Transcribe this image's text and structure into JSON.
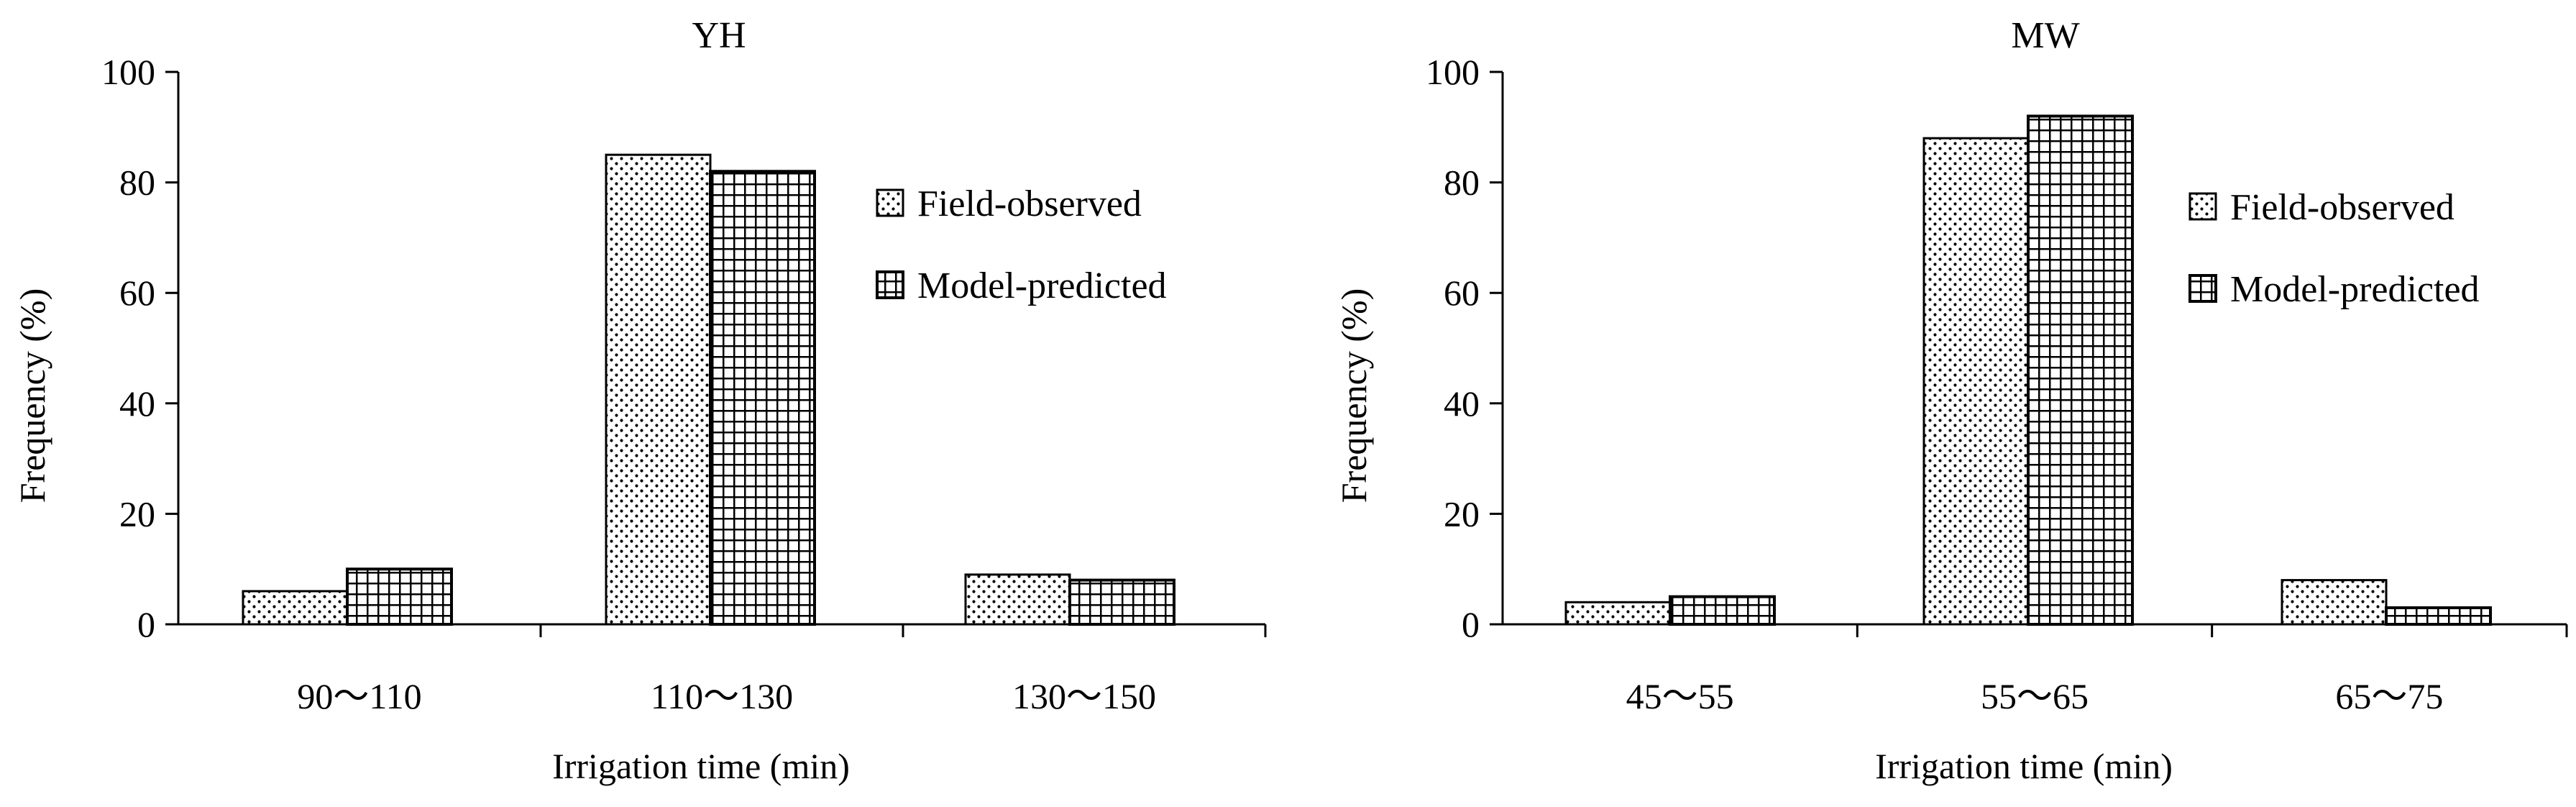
{
  "chart_data": [
    {
      "type": "bar",
      "title": "YH",
      "categories": [
        "90～110",
        "110～130",
        "130～150"
      ],
      "series": [
        {
          "name": "Field-observed",
          "values": [
            6,
            85,
            9
          ]
        },
        {
          "name": "Model-predicted",
          "values": [
            10,
            82,
            8
          ]
        }
      ],
      "xlabel": "Irrigation time (min)",
      "ylabel": "Frequency (%)",
      "ylim": [
        0,
        100
      ],
      "yticks": [
        0,
        20,
        40,
        60,
        80,
        100
      ],
      "grid": false,
      "legend": "right"
    },
    {
      "type": "bar",
      "title": "MW",
      "categories": [
        "45～55",
        "55～65",
        "65～75"
      ],
      "series": [
        {
          "name": "Field-observed",
          "values": [
            4,
            88,
            8
          ]
        },
        {
          "name": "Model-predicted",
          "values": [
            5,
            92,
            3
          ]
        }
      ],
      "xlabel": "Irrigation time (min)",
      "ylabel": "Frequency (%)",
      "ylim": [
        0,
        100
      ],
      "yticks": [
        0,
        20,
        40,
        60,
        80,
        100
      ],
      "grid": false,
      "legend": "right"
    }
  ]
}
